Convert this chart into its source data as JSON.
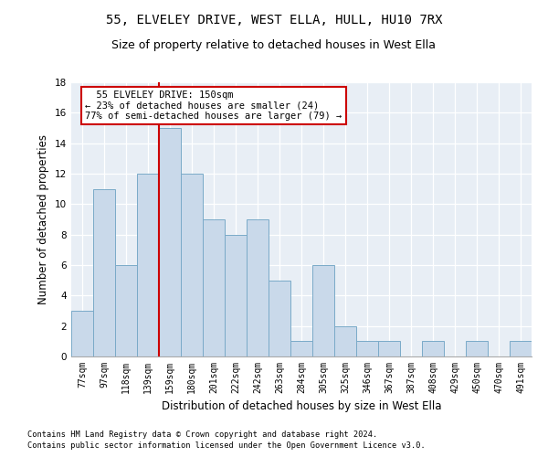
{
  "title1": "55, ELVELEY DRIVE, WEST ELLA, HULL, HU10 7RX",
  "title2": "Size of property relative to detached houses in West Ella",
  "xlabel": "Distribution of detached houses by size in West Ella",
  "ylabel": "Number of detached properties",
  "bar_labels": [
    "77sqm",
    "97sqm",
    "118sqm",
    "139sqm",
    "159sqm",
    "180sqm",
    "201sqm",
    "222sqm",
    "242sqm",
    "263sqm",
    "284sqm",
    "305sqm",
    "325sqm",
    "346sqm",
    "367sqm",
    "387sqm",
    "408sqm",
    "429sqm",
    "450sqm",
    "470sqm",
    "491sqm"
  ],
  "bar_values": [
    3,
    11,
    6,
    12,
    15,
    12,
    9,
    8,
    9,
    5,
    1,
    6,
    2,
    1,
    1,
    0,
    1,
    0,
    1,
    0,
    1
  ],
  "bar_color": "#c9d9ea",
  "bar_edge_color": "#7aaac8",
  "vline_x": 3.5,
  "vline_color": "#cc0000",
  "annotation_text": "  55 ELVELEY DRIVE: 150sqm\n← 23% of detached houses are smaller (24)\n77% of semi-detached houses are larger (79) →",
  "annotation_box_color": "#ffffff",
  "annotation_box_edge": "#cc0000",
  "ylim": [
    0,
    18
  ],
  "yticks": [
    0,
    2,
    4,
    6,
    8,
    10,
    12,
    14,
    16,
    18
  ],
  "bg_color": "#e8eef5",
  "footer1": "Contains HM Land Registry data © Crown copyright and database right 2024.",
  "footer2": "Contains public sector information licensed under the Open Government Licence v3.0.",
  "title1_fontsize": 10,
  "title2_fontsize": 9,
  "tick_fontsize": 7,
  "ylabel_fontsize": 8.5,
  "xlabel_fontsize": 8.5
}
